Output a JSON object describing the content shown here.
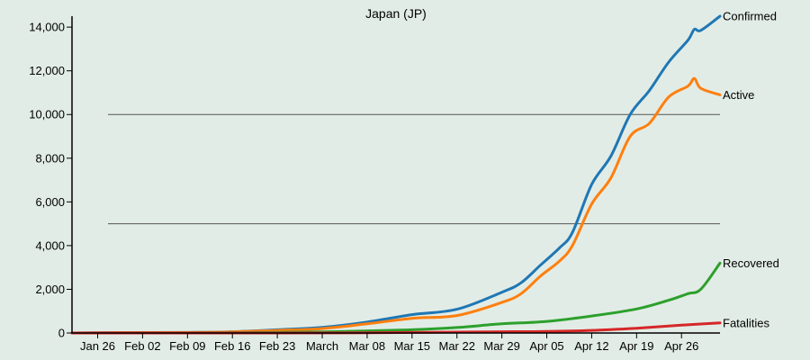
{
  "chart_data": {
    "type": "line",
    "title": "Japan (JP)",
    "xlabel": "",
    "ylabel": "",
    "x_range": [
      "2020-01-22",
      "2020-05-02"
    ],
    "ylim": [
      0,
      14500
    ],
    "y_ticks": [
      0,
      2000,
      4000,
      6000,
      8000,
      10000,
      12000,
      14000
    ],
    "y_tick_labels": [
      "0",
      "2,000",
      "4,000",
      "6,000",
      "8,000",
      "10,000",
      "12,000",
      "14,000"
    ],
    "x_ticks": [
      "2020-01-26",
      "2020-02-02",
      "2020-02-09",
      "2020-02-16",
      "2020-02-23",
      "2020-03-01",
      "2020-03-08",
      "2020-03-15",
      "2020-03-22",
      "2020-03-29",
      "2020-04-05",
      "2020-04-12",
      "2020-04-19",
      "2020-04-26"
    ],
    "x_tick_labels": [
      "Jan 26",
      "Feb 02",
      "Feb 09",
      "Feb 16",
      "Feb 23",
      "March",
      "Mar 08",
      "Mar 15",
      "Mar 22",
      "Mar 29",
      "Apr 05",
      "Apr 12",
      "Apr 19",
      "Apr 26"
    ],
    "reference_lines": [
      5000,
      10000
    ],
    "grid": false,
    "legend": "end-of-line labels",
    "series": [
      {
        "name": "Confirmed",
        "color": "#1f77b4",
        "points": [
          [
            "2020-01-22",
            2
          ],
          [
            "2020-02-01",
            20
          ],
          [
            "2020-02-09",
            26
          ],
          [
            "2020-02-16",
            59
          ],
          [
            "2020-02-23",
            147
          ],
          [
            "2020-03-01",
            256
          ],
          [
            "2020-03-08",
            502
          ],
          [
            "2020-03-15",
            839
          ],
          [
            "2020-03-22",
            1086
          ],
          [
            "2020-03-29",
            1866
          ],
          [
            "2020-04-01",
            2300
          ],
          [
            "2020-04-04",
            3100
          ],
          [
            "2020-04-07",
            3900
          ],
          [
            "2020-04-09",
            4600
          ],
          [
            "2020-04-12",
            6800
          ],
          [
            "2020-04-15",
            8100
          ],
          [
            "2020-04-18",
            10000
          ],
          [
            "2020-04-21",
            11100
          ],
          [
            "2020-04-24",
            12400
          ],
          [
            "2020-04-27",
            13400
          ],
          [
            "2020-04-28",
            13900
          ],
          [
            "2020-04-29",
            13850
          ],
          [
            "2020-05-02",
            14500
          ]
        ]
      },
      {
        "name": "Active",
        "color": "#ff7f0e",
        "points": [
          [
            "2020-01-22",
            2
          ],
          [
            "2020-02-01",
            18
          ],
          [
            "2020-02-09",
            20
          ],
          [
            "2020-02-16",
            50
          ],
          [
            "2020-02-23",
            120
          ],
          [
            "2020-03-01",
            200
          ],
          [
            "2020-03-08",
            420
          ],
          [
            "2020-03-15",
            670
          ],
          [
            "2020-03-22",
            800
          ],
          [
            "2020-03-29",
            1400
          ],
          [
            "2020-04-01",
            1800
          ],
          [
            "2020-04-04",
            2600
          ],
          [
            "2020-04-07",
            3300
          ],
          [
            "2020-04-09",
            4000
          ],
          [
            "2020-04-12",
            5900
          ],
          [
            "2020-04-15",
            7100
          ],
          [
            "2020-04-18",
            9000
          ],
          [
            "2020-04-21",
            9600
          ],
          [
            "2020-04-24",
            10800
          ],
          [
            "2020-04-27",
            11300
          ],
          [
            "2020-04-28",
            11650
          ],
          [
            "2020-04-29",
            11200
          ],
          [
            "2020-05-02",
            10900
          ]
        ]
      },
      {
        "name": "Recovered",
        "color": "#2ca02c",
        "points": [
          [
            "2020-01-22",
            0
          ],
          [
            "2020-02-16",
            10
          ],
          [
            "2020-03-01",
            50
          ],
          [
            "2020-03-08",
            100
          ],
          [
            "2020-03-15",
            150
          ],
          [
            "2020-03-22",
            250
          ],
          [
            "2020-03-29",
            420
          ],
          [
            "2020-04-05",
            530
          ],
          [
            "2020-04-12",
            780
          ],
          [
            "2020-04-19",
            1100
          ],
          [
            "2020-04-24",
            1500
          ],
          [
            "2020-04-27",
            1800
          ],
          [
            "2020-04-29",
            2000
          ],
          [
            "2020-05-02",
            3200
          ]
        ]
      },
      {
        "name": "Fatalities",
        "color": "#d62728",
        "points": [
          [
            "2020-01-22",
            0
          ],
          [
            "2020-02-23",
            1
          ],
          [
            "2020-03-08",
            9
          ],
          [
            "2020-03-22",
            40
          ],
          [
            "2020-03-29",
            56
          ],
          [
            "2020-04-05",
            73
          ],
          [
            "2020-04-12",
            120
          ],
          [
            "2020-04-19",
            220
          ],
          [
            "2020-04-26",
            360
          ],
          [
            "2020-05-02",
            460
          ]
        ]
      }
    ]
  }
}
